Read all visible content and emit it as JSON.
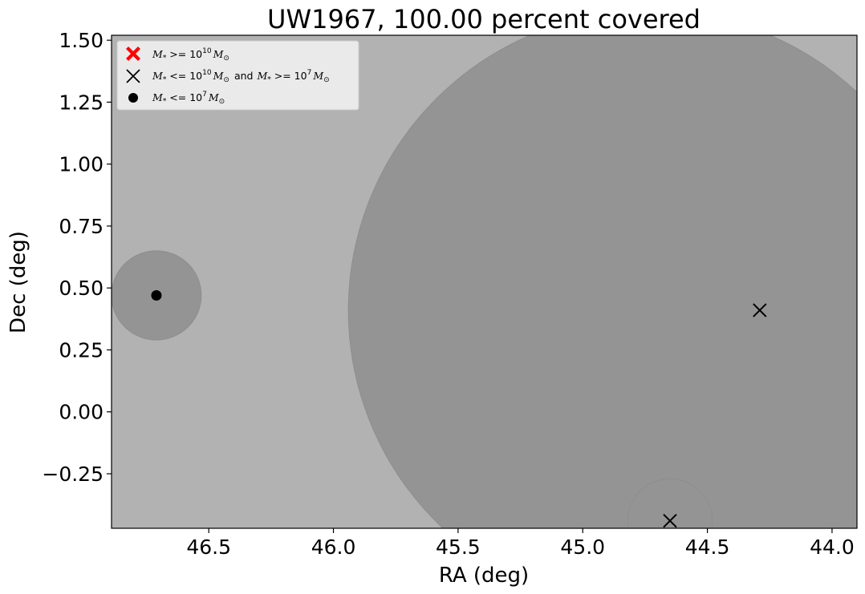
{
  "chart_data": {
    "type": "scatter",
    "title": "UW1967, 100.00 percent covered",
    "xlabel": "RA (deg)",
    "ylabel": "Dec (deg)",
    "xlim": [
      46.89,
      43.9
    ],
    "ylim": [
      -0.47,
      1.52
    ],
    "x_inverted": true,
    "grid": false,
    "legend_position": "top-left",
    "x_ticks": [
      46.5,
      46.0,
      45.5,
      45.0,
      44.5,
      44.0
    ],
    "x_tick_labels": [
      "46.5",
      "46.0",
      "45.5",
      "45.0",
      "44.5",
      "44.0"
    ],
    "y_ticks": [
      -0.25,
      0.0,
      0.25,
      0.5,
      0.75,
      1.0,
      1.25,
      1.5
    ],
    "y_tick_labels": [
      "−0.25",
      "0.00",
      "0.25",
      "0.50",
      "0.75",
      "1.00",
      "1.25",
      "1.50"
    ],
    "background_color": "#b2b2b2",
    "coverage_color": "#949494",
    "coverage_circles": [
      {
        "ra": 44.73,
        "dec": 0.41,
        "radius": 1.21
      },
      {
        "ra": 46.71,
        "dec": 0.47,
        "radius": 0.18
      },
      {
        "ra": 44.65,
        "dec": -0.44,
        "radius": 0.17
      }
    ],
    "series": [
      {
        "name": "M* >= 10^10 M_sun",
        "marker": "filled-x",
        "color": "#ff0000",
        "points": []
      },
      {
        "name": "M* <= 10^10 M_sun and M* >= 10^7 M_sun",
        "marker": "x",
        "color": "#000000",
        "points": [
          {
            "x": 44.29,
            "y": 0.41
          },
          {
            "x": 44.65,
            "y": -0.44
          }
        ]
      },
      {
        "name": "M* <= 10^7 M_sun",
        "marker": "circle",
        "color": "#000000",
        "points": [
          {
            "x": 46.71,
            "y": 0.47
          }
        ]
      }
    ],
    "legend": {
      "entry1": {
        "m": "M",
        "sub": "*",
        "rel": " >= 10",
        "exp": "10",
        "msun": "M",
        "sunsub": "⊙"
      },
      "entry2": {
        "m": "M",
        "sub": "*",
        "rel": " <= 10",
        "exp": "10",
        "msun": "M",
        "sunsub": "⊙",
        "and": "and",
        "m2": "M",
        "sub2": "*",
        "rel2": " >= 10",
        "exp2": "7",
        "msun2": "M",
        "sunsub2": "⊙"
      },
      "entry3": {
        "m": "M",
        "sub": "*",
        "rel": " <= 10",
        "exp": "7",
        "msun": "M",
        "sunsub": "⊙"
      }
    }
  }
}
